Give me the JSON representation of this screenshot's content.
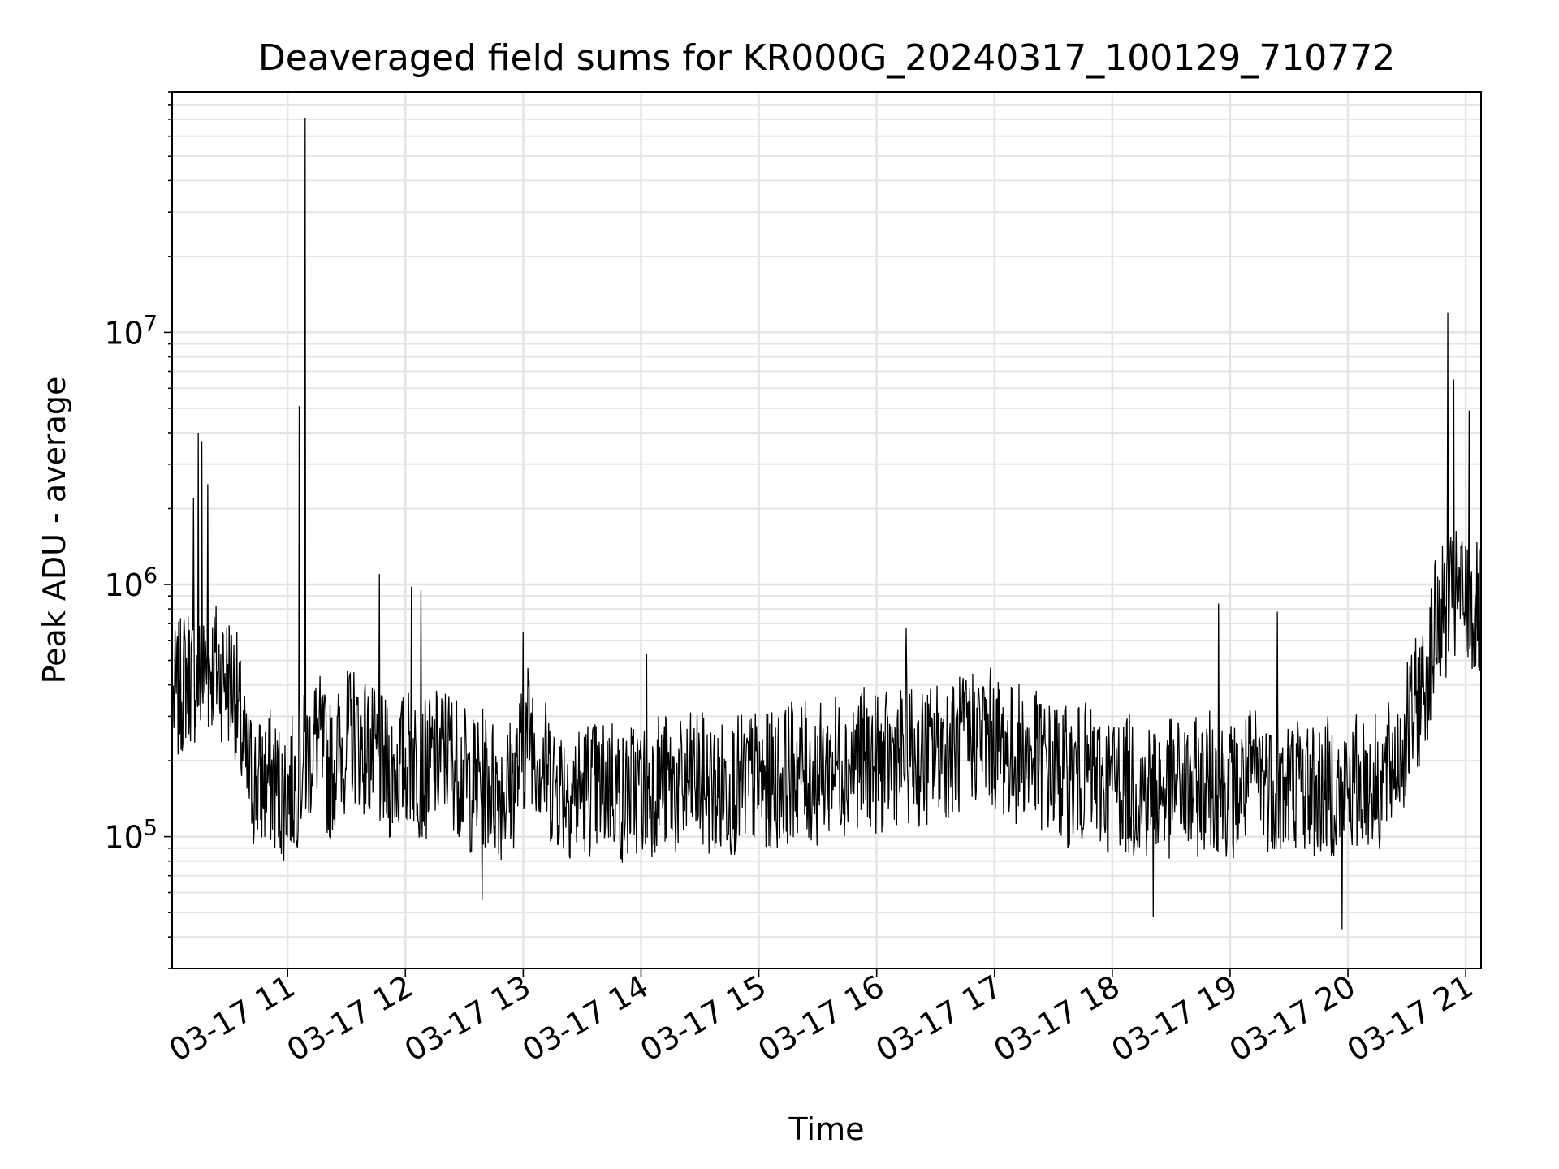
{
  "chart_data": {
    "type": "line",
    "title": "Deaveraged field sums for KR000G_20240317_100129_710772",
    "xlabel": "Time",
    "ylabel": "Peak ADU - average",
    "yscale": "log",
    "grid": true,
    "color": "#000000",
    "x_tick_labels": [
      "03-17 11",
      "03-17 12",
      "03-17 13",
      "03-17 14",
      "03-17 15",
      "03-17 16",
      "03-17 17",
      "03-17 18",
      "03-17 19",
      "03-17 20",
      "03-17 21"
    ],
    "x_tick_hours": [
      11,
      12,
      13,
      14,
      15,
      16,
      17,
      18,
      19,
      20,
      21
    ],
    "xlim_hours": [
      10.02,
      21.13
    ],
    "y_tick_labels": [
      {
        "mantissa": "10",
        "exp": "5",
        "value": 100000
      },
      {
        "mantissa": "10",
        "exp": "6",
        "value": 1000000
      },
      {
        "mantissa": "10",
        "exp": "7",
        "value": 10000000
      }
    ],
    "ylim": [
      30000,
      90000000
    ],
    "series": [
      {
        "x": [
          10.05,
          10.15,
          10.25,
          10.35,
          10.45,
          10.55,
          10.65,
          10.75,
          10.85,
          10.95,
          11.05,
          11.15,
          11.25,
          11.35,
          11.45,
          11.55,
          11.65,
          11.75,
          11.85,
          11.95,
          12.05,
          12.15,
          12.25,
          12.35,
          12.45,
          12.55,
          12.65,
          12.75,
          12.85,
          12.95,
          13.05,
          13.15,
          13.25,
          13.35,
          13.45,
          13.55,
          13.65,
          13.75,
          13.85,
          13.95,
          14.05,
          14.15,
          14.25,
          14.35,
          14.45,
          14.55,
          14.65,
          14.75,
          14.85,
          14.95,
          15.05,
          15.15,
          15.25,
          15.35,
          15.45,
          15.55,
          15.65,
          15.75,
          15.85,
          15.95,
          16.05,
          16.15,
          16.25,
          16.35,
          16.45,
          16.55,
          16.65,
          16.75,
          16.85,
          16.95,
          17.05,
          17.15,
          17.25,
          17.35,
          17.45,
          17.55,
          17.65,
          17.75,
          17.85,
          17.95,
          18.05,
          18.15,
          18.25,
          18.35,
          18.45,
          18.55,
          18.65,
          18.75,
          18.85,
          18.95,
          19.05,
          19.15,
          19.25,
          19.35,
          19.45,
          19.55,
          19.65,
          19.75,
          19.85,
          19.95,
          20.05,
          20.15,
          20.25,
          20.35,
          20.45,
          20.55,
          20.65,
          20.75,
          20.85,
          20.95,
          21.05,
          21.12
        ],
        "y": [
          350000,
          450000,
          420000,
          480000,
          450000,
          400000,
          180000,
          160000,
          170000,
          150000,
          160000,
          200000,
          250000,
          180000,
          220000,
          260000,
          230000,
          200000,
          180000,
          190000,
          210000,
          180000,
          200000,
          220000,
          190000,
          160000,
          170000,
          160000,
          150000,
          180000,
          280000,
          200000,
          170000,
          160000,
          150000,
          160000,
          150000,
          170000,
          140000,
          160000,
          150000,
          170000,
          160000,
          150000,
          170000,
          160000,
          150000,
          160000,
          160000,
          170000,
          160000,
          170000,
          180000,
          190000,
          170000,
          180000,
          200000,
          190000,
          210000,
          200000,
          190000,
          210000,
          220000,
          200000,
          210000,
          230000,
          220000,
          240000,
          260000,
          250000,
          230000,
          210000,
          220000,
          200000,
          190000,
          180000,
          170000,
          180000,
          170000,
          160000,
          170000,
          160000,
          150000,
          160000,
          150000,
          160000,
          150000,
          160000,
          170000,
          160000,
          150000,
          170000,
          180000,
          160000,
          150000,
          170000,
          160000,
          150000,
          160000,
          150000,
          160000,
          170000,
          160000,
          180000,
          220000,
          300000,
          400000,
          700000,
          800000,
          900000,
          800000,
          750000
        ]
      }
    ],
    "spikes": [
      {
        "x": 10.2,
        "y": 2200000
      },
      {
        "x": 10.24,
        "y": 4000000
      },
      {
        "x": 10.27,
        "y": 3700000
      },
      {
        "x": 10.32,
        "y": 2500000
      },
      {
        "x": 11.1,
        "y": 5100000
      },
      {
        "x": 11.15,
        "y": 71000000
      },
      {
        "x": 11.78,
        "y": 1100000
      },
      {
        "x": 12.05,
        "y": 980000
      },
      {
        "x": 12.13,
        "y": 950000
      },
      {
        "x": 12.65,
        "y": 56000
      },
      {
        "x": 13.0,
        "y": 650000
      },
      {
        "x": 14.05,
        "y": 530000
      },
      {
        "x": 16.25,
        "y": 670000
      },
      {
        "x": 18.35,
        "y": 48000
      },
      {
        "x": 18.9,
        "y": 840000
      },
      {
        "x": 19.4,
        "y": 780000
      },
      {
        "x": 19.95,
        "y": 43000
      },
      {
        "x": 20.85,
        "y": 12000000
      },
      {
        "x": 20.9,
        "y": 6500000
      },
      {
        "x": 21.03,
        "y": 4900000
      }
    ]
  }
}
